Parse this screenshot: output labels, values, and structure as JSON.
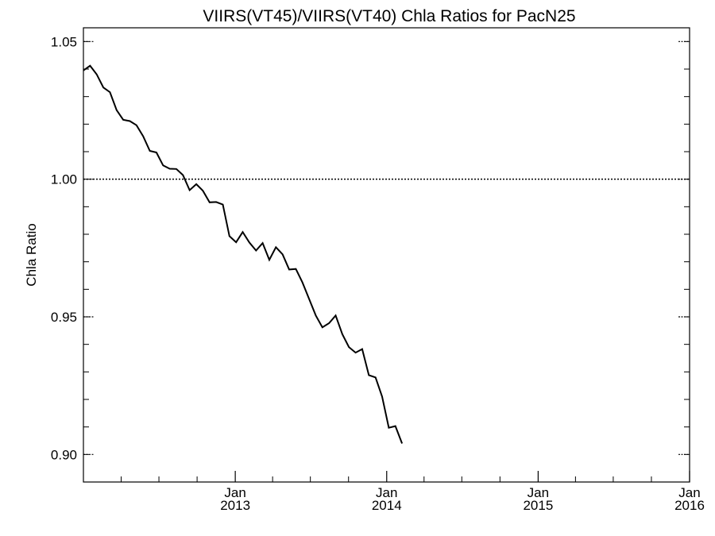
{
  "chart_data": {
    "type": "line",
    "title": "VIIRS(VT45)/VIIRS(VT40)  Chla Ratios for PacN25",
    "xlabel": "",
    "ylabel": "Chla Ratio",
    "xlim": [
      "2012-01-01",
      "2016-01-01"
    ],
    "ylim": [
      0.89,
      1.055
    ],
    "grid": false,
    "reference_line": 1.0,
    "x_ticks": [
      {
        "value": "2013-01-01",
        "month": "Jan",
        "year": "2013"
      },
      {
        "value": "2014-01-01",
        "month": "Jan",
        "year": "2014"
      },
      {
        "value": "2015-01-01",
        "month": "Jan",
        "year": "2015"
      },
      {
        "value": "2016-01-01",
        "month": "Jan",
        "year": "2016"
      }
    ],
    "y_ticks": [
      {
        "value": 1.05,
        "label": "1.05"
      },
      {
        "value": 1.0,
        "label": "1.00"
      },
      {
        "value": 0.95,
        "label": "0.95"
      },
      {
        "value": 0.9,
        "label": "0.90"
      }
    ],
    "series": [
      {
        "points": [
          [
            "2012-01-01",
            1.0395
          ],
          [
            "2012-01-17",
            1.0412
          ],
          [
            "2012-02-02",
            1.0381
          ],
          [
            "2012-02-18",
            1.0333
          ],
          [
            "2012-03-05",
            1.0316
          ],
          [
            "2012-03-21",
            1.0251
          ],
          [
            "2012-04-06",
            1.0216
          ],
          [
            "2012-04-22",
            1.0211
          ],
          [
            "2012-05-08",
            1.0196
          ],
          [
            "2012-05-24",
            1.0156
          ],
          [
            "2012-06-09",
            1.0103
          ],
          [
            "2012-06-25",
            1.0097
          ],
          [
            "2012-07-11",
            1.005
          ],
          [
            "2012-07-27",
            1.0038
          ],
          [
            "2012-08-12",
            1.0037
          ],
          [
            "2012-08-28",
            1.0015
          ],
          [
            "2012-09-13",
            0.996
          ],
          [
            "2012-09-29",
            0.9982
          ],
          [
            "2012-10-15",
            0.9958
          ],
          [
            "2012-10-31",
            0.9916
          ],
          [
            "2012-11-16",
            0.9917
          ],
          [
            "2012-12-02",
            0.9908
          ],
          [
            "2012-12-18",
            0.9793
          ],
          [
            "2013-01-03",
            0.9771
          ],
          [
            "2013-01-19",
            0.9808
          ],
          [
            "2013-02-04",
            0.977
          ],
          [
            "2013-02-20",
            0.9741
          ],
          [
            "2013-03-08",
            0.9768
          ],
          [
            "2013-03-24",
            0.9707
          ],
          [
            "2013-04-09",
            0.9753
          ],
          [
            "2013-04-25",
            0.9727
          ],
          [
            "2013-05-11",
            0.9672
          ],
          [
            "2013-05-27",
            0.9674
          ],
          [
            "2013-06-12",
            0.9625
          ],
          [
            "2013-06-28",
            0.9565
          ],
          [
            "2013-07-14",
            0.9505
          ],
          [
            "2013-07-30",
            0.9462
          ],
          [
            "2013-08-15",
            0.9477
          ],
          [
            "2013-08-31",
            0.9505
          ],
          [
            "2013-09-16",
            0.9437
          ],
          [
            "2013-10-02",
            0.939
          ],
          [
            "2013-10-18",
            0.937
          ],
          [
            "2013-11-03",
            0.9383
          ],
          [
            "2013-11-19",
            0.9288
          ],
          [
            "2013-12-05",
            0.928
          ],
          [
            "2013-12-21",
            0.921
          ],
          [
            "2014-01-06",
            0.9097
          ],
          [
            "2014-01-22",
            0.9103
          ],
          [
            "2014-02-07",
            0.904
          ]
        ]
      }
    ]
  }
}
